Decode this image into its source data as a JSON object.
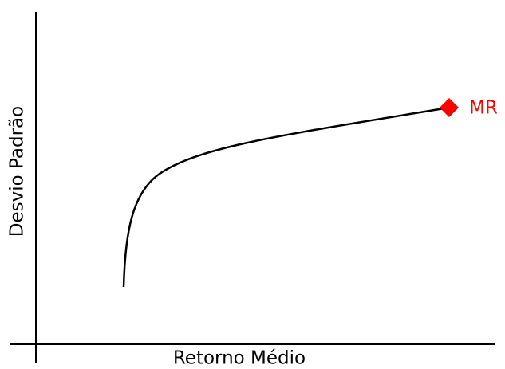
{
  "x_axis_label": "Retorno Médio",
  "y_axis_label": "Desvio Padrão",
  "point_label": "MR"
}
